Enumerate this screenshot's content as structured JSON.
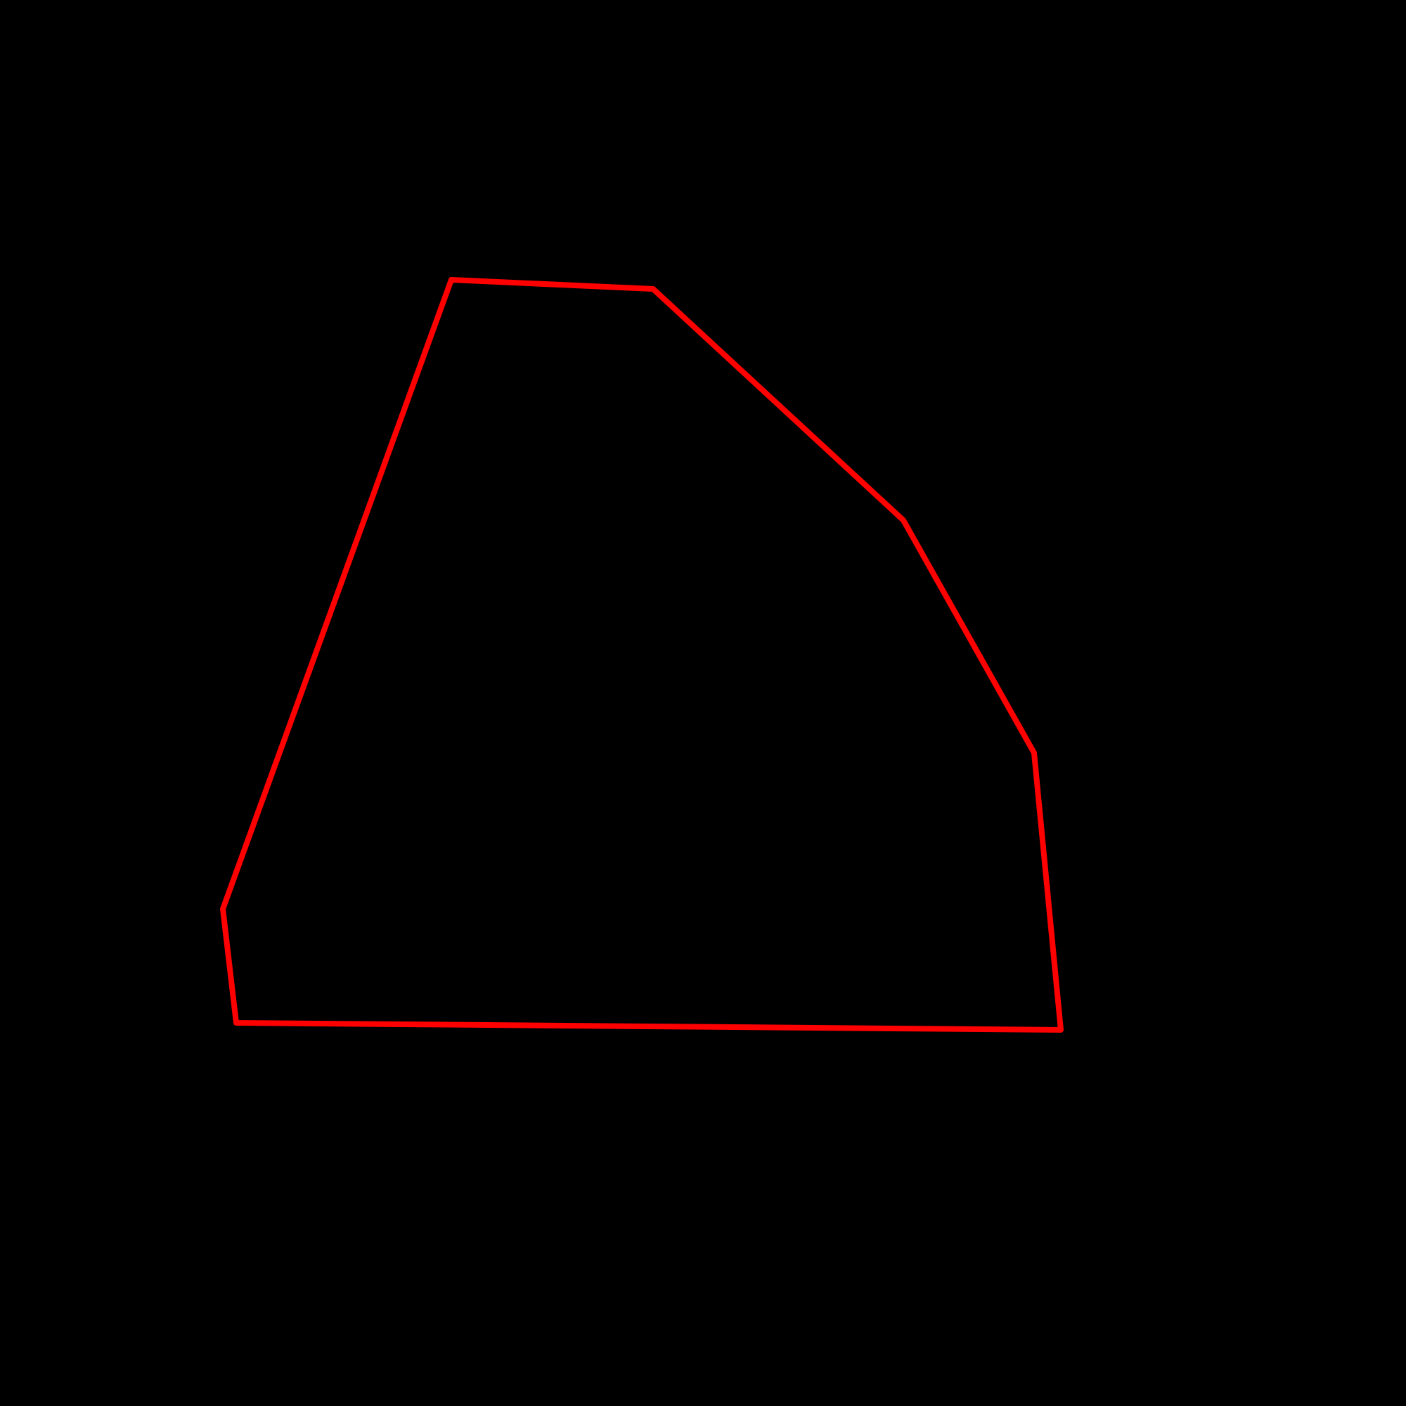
{
  "canvas": {
    "background_color": "#000000"
  },
  "shape": {
    "kind": "closed polygon outline",
    "vertex_count": 7,
    "stroke_color": "#ff0000",
    "fill": "none"
  }
}
